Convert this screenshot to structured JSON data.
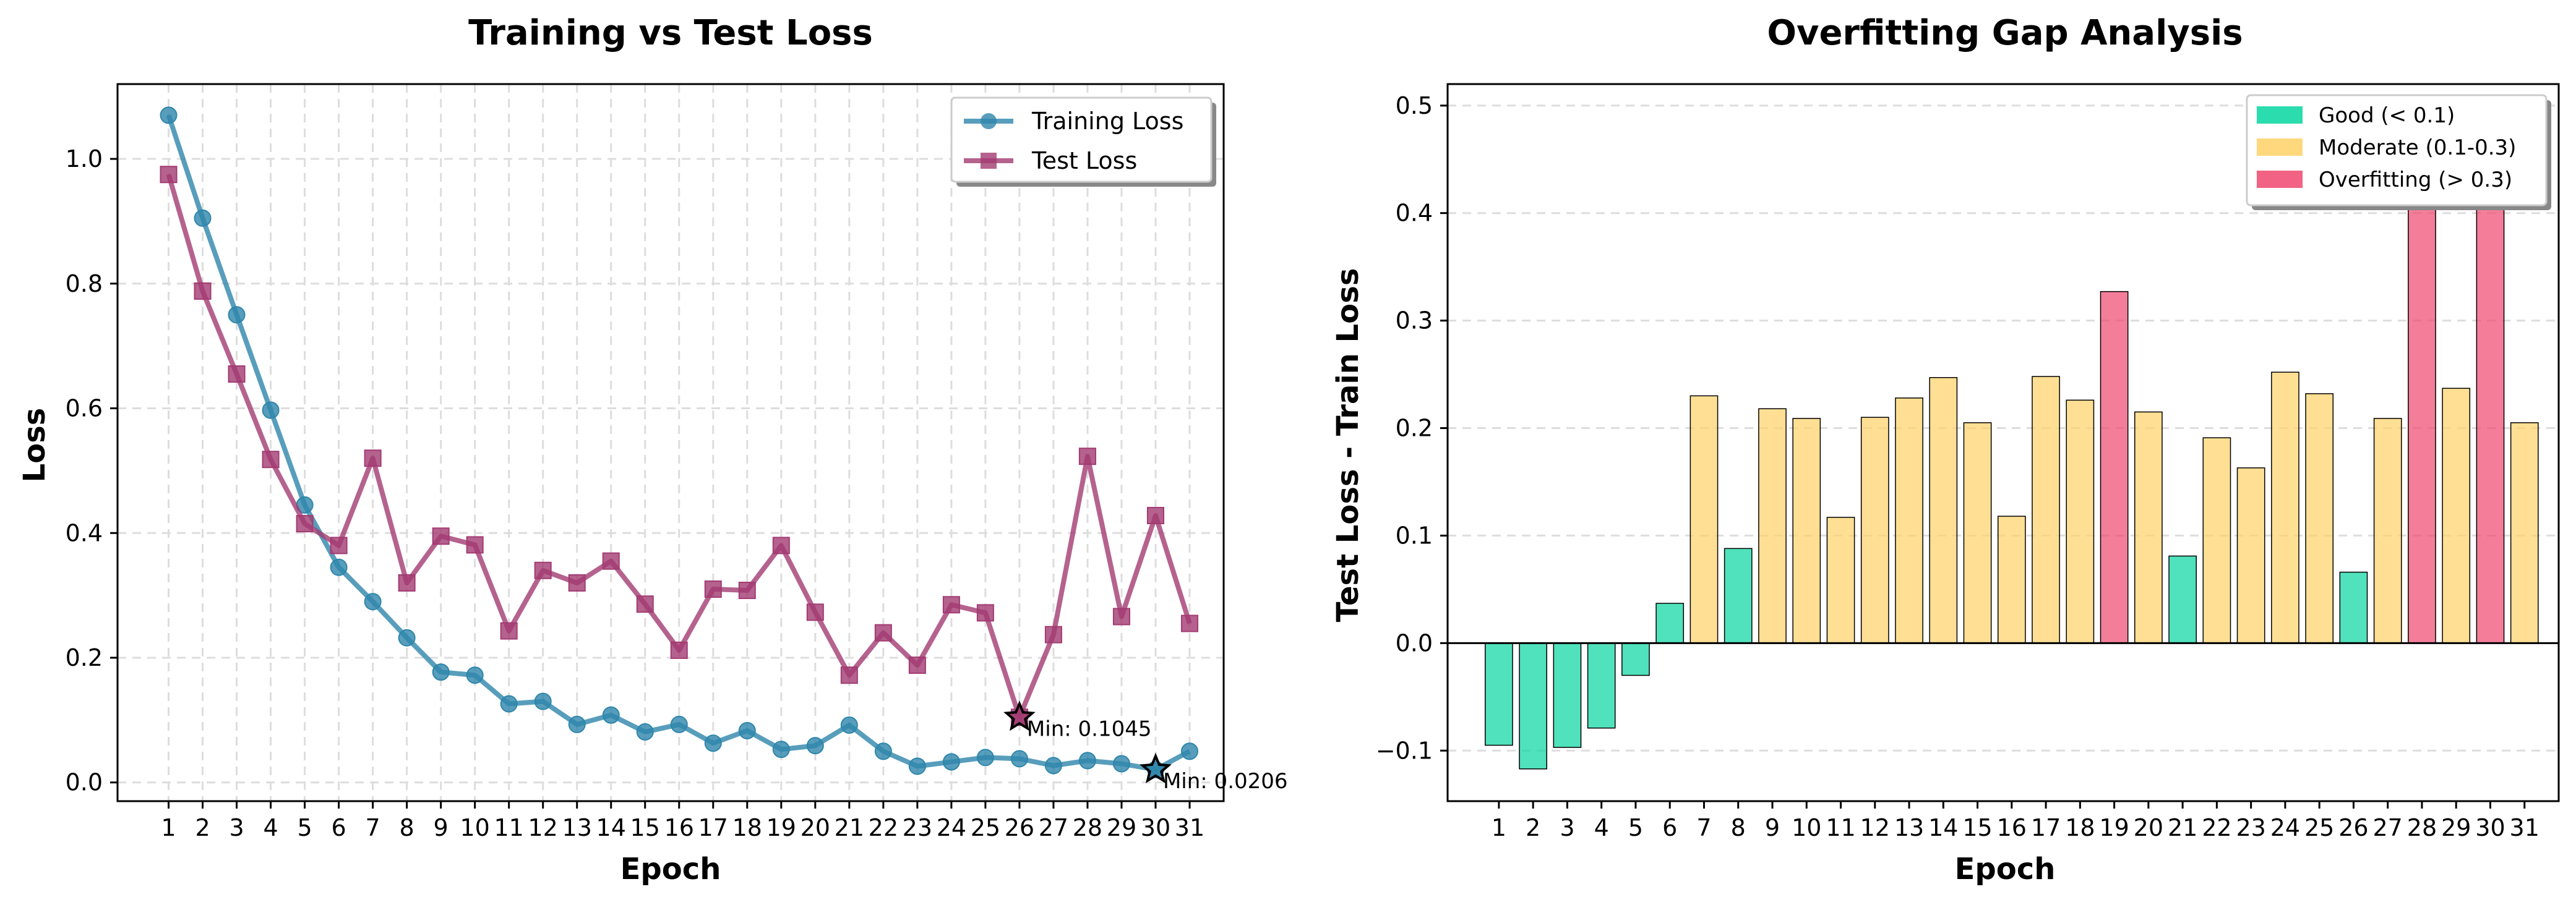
{
  "chart_data": [
    {
      "type": "line",
      "title": "Training vs Test Loss",
      "xlabel": "Epoch",
      "ylabel": "Loss",
      "x": [
        1,
        2,
        3,
        4,
        5,
        6,
        7,
        8,
        9,
        10,
        11,
        12,
        13,
        14,
        15,
        16,
        17,
        18,
        19,
        20,
        21,
        22,
        23,
        24,
        25,
        26,
        27,
        28,
        29,
        30,
        31
      ],
      "xlim": [
        -0.5,
        32.0
      ],
      "ylim": [
        -0.03,
        1.12
      ],
      "yticks": [
        0.0,
        0.2,
        0.4,
        0.6,
        0.8,
        1.0
      ],
      "ytick_labels": [
        "0.0",
        "0.2",
        "0.4",
        "0.6",
        "0.8",
        "1.0"
      ],
      "grid": true,
      "legend_position": "top-right",
      "series": [
        {
          "name": "Training Loss",
          "color": "#2E86AB",
          "marker": "circle",
          "values": [
            1.07,
            0.905,
            0.75,
            0.597,
            0.445,
            0.345,
            0.29,
            0.232,
            0.177,
            0.172,
            0.126,
            0.13,
            0.093,
            0.108,
            0.081,
            0.093,
            0.063,
            0.083,
            0.053,
            0.059,
            0.092,
            0.05,
            0.026,
            0.033,
            0.04,
            0.038,
            0.027,
            0.035,
            0.03,
            0.0206,
            0.05
          ]
        },
        {
          "name": "Test Loss",
          "color": "#A23B72",
          "marker": "square",
          "values": [
            0.975,
            0.788,
            0.655,
            0.518,
            0.415,
            0.38,
            0.52,
            0.32,
            0.395,
            0.381,
            0.243,
            0.34,
            0.32,
            0.355,
            0.286,
            0.212,
            0.31,
            0.308,
            0.38,
            0.273,
            0.172,
            0.24,
            0.188,
            0.285,
            0.272,
            0.1045,
            0.237,
            0.523,
            0.266,
            0.428,
            0.255
          ]
        }
      ],
      "annotations": [
        {
          "text": "Min: 0.1045",
          "x": 26,
          "y": 0.1045,
          "series": "Test Loss"
        },
        {
          "text": "Min: 0.0206",
          "x": 30,
          "y": 0.0206,
          "series": "Training Loss"
        }
      ]
    },
    {
      "type": "bar",
      "title": "Overfitting Gap Analysis",
      "xlabel": "Epoch",
      "ylabel": "Test Loss - Train Loss",
      "categories": [
        "1",
        "2",
        "3",
        "4",
        "5",
        "6",
        "7",
        "8",
        "9",
        "10",
        "11",
        "12",
        "13",
        "14",
        "15",
        "16",
        "17",
        "18",
        "19",
        "20",
        "21",
        "22",
        "23",
        "24",
        "25",
        "26",
        "27",
        "28",
        "29",
        "30",
        "31"
      ],
      "values": [
        -0.095,
        -0.117,
        -0.097,
        -0.079,
        -0.03,
        0.037,
        0.23,
        0.088,
        0.218,
        0.209,
        0.117,
        0.21,
        0.228,
        0.247,
        0.205,
        0.118,
        0.248,
        0.226,
        0.327,
        0.215,
        0.081,
        0.191,
        0.163,
        0.252,
        0.232,
        0.066,
        0.209,
        0.488,
        0.237,
        0.407,
        0.205
      ],
      "categories_of_values": [
        "good",
        "good",
        "good",
        "good",
        "good",
        "good",
        "moderate",
        "good",
        "moderate",
        "moderate",
        "moderate",
        "moderate",
        "moderate",
        "moderate",
        "moderate",
        "moderate",
        "moderate",
        "moderate",
        "overfitting",
        "moderate",
        "good",
        "moderate",
        "moderate",
        "moderate",
        "moderate",
        "good",
        "moderate",
        "overfitting",
        "moderate",
        "overfitting",
        "moderate"
      ],
      "ylim": [
        -0.147,
        0.52
      ],
      "yticks": [
        -0.1,
        0.0,
        0.1,
        0.2,
        0.3,
        0.4,
        0.5
      ],
      "ytick_labels": [
        "−0.1",
        "0.0",
        "0.1",
        "0.2",
        "0.3",
        "0.4",
        "0.5"
      ],
      "grid": true,
      "legend_position": "top-right",
      "legend": [
        {
          "key": "good",
          "label": "Good (< 0.1)",
          "color": "#06D6A0"
        },
        {
          "key": "moderate",
          "label": "Moderate (0.1-0.3)",
          "color": "#FFD166"
        },
        {
          "key": "overfitting",
          "label": "Overfitting (> 0.3)",
          "color": "#EF476F"
        }
      ]
    }
  ]
}
